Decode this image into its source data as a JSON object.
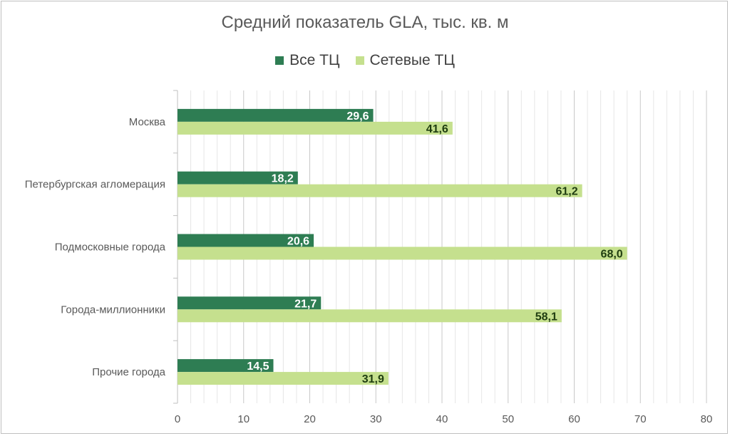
{
  "chart_data": {
    "type": "bar",
    "orientation": "horizontal",
    "title": "Средний показатель GLA, тыс. кв. м",
    "categories": [
      "Москва",
      "Петербургская агломерация",
      "Подмосковные города",
      "Города-миллионники",
      "Прочие города"
    ],
    "series": [
      {
        "name": "Все ТЦ",
        "values": [
          29.6,
          18.2,
          20.6,
          21.7,
          14.5
        ],
        "labels": [
          "29,6",
          "18,2",
          "20,6",
          "21,7",
          "14,5"
        ],
        "color": "#2e7d53",
        "label_color": "#ffffff"
      },
      {
        "name": "Сетевые ТЦ",
        "values": [
          41.6,
          61.2,
          68.0,
          58.1,
          31.9
        ],
        "labels": [
          "41,6",
          "61,2",
          "68,0",
          "58,1",
          "31,9"
        ],
        "color": "#c5e08e",
        "label_color": "#1f3d10"
      }
    ],
    "xlim": [
      0,
      80
    ],
    "xticks": [
      0,
      10,
      20,
      30,
      40,
      50,
      60,
      70,
      80
    ],
    "grid": true,
    "minor_grid": true,
    "legend_position": "top"
  }
}
